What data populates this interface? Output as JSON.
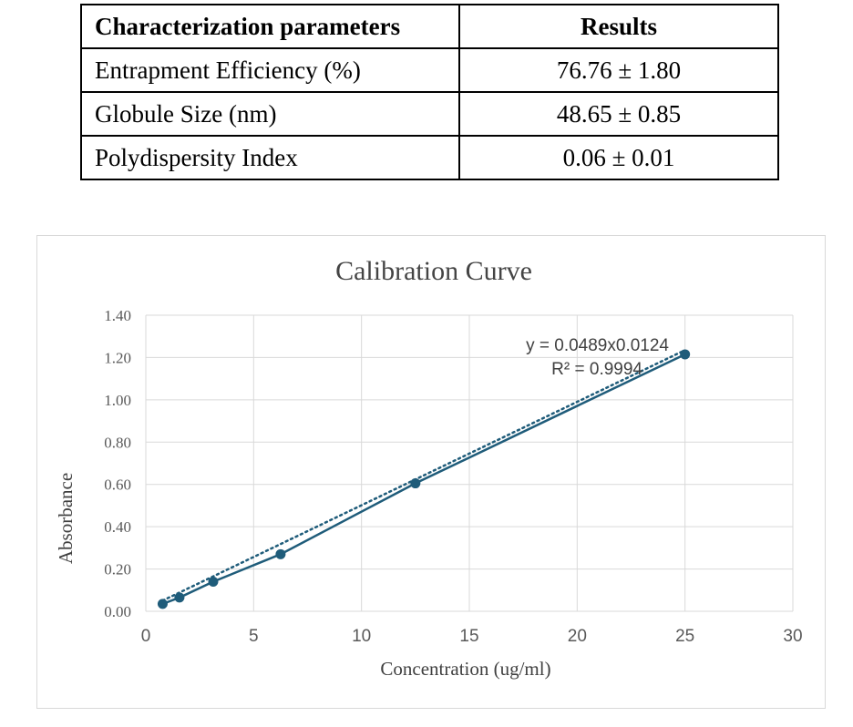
{
  "table": {
    "headers": [
      "Characterization parameters",
      "Results"
    ],
    "rows": [
      {
        "parameter": "Entrapment Efficiency (%)",
        "result": "76.76 ± 1.80"
      },
      {
        "parameter": "Globule Size (nm)",
        "result": "48.65 ± 0.85"
      },
      {
        "parameter": "Polydispersity Index",
        "result": "0.06 ± 0.01"
      }
    ]
  },
  "chart_data": {
    "type": "scatter",
    "title": "Calibration Curve",
    "xlabel": "Concentration (ug/ml)",
    "ylabel": "Absorbance",
    "xlim": [
      0,
      30
    ],
    "ylim": [
      0,
      1.4
    ],
    "x_ticks": [
      "0",
      "5",
      "10",
      "15",
      "20",
      "25",
      "30"
    ],
    "y_ticks": [
      "0.00",
      "0.20",
      "0.40",
      "0.60",
      "0.80",
      "1.00",
      "1.20",
      "1.40"
    ],
    "grid": true,
    "series": [
      {
        "x": [
          0.78,
          1.56,
          3.125,
          6.25,
          12.5,
          25
        ],
        "y": [
          0.035,
          0.065,
          0.14,
          0.27,
          0.605,
          1.215
        ],
        "color": "#1f5c7a",
        "connected": true
      }
    ],
    "trendline": {
      "type": "linear",
      "slope": 0.0489,
      "intercept": 0.0124,
      "style": "dotted",
      "color": "#1f5c7a"
    },
    "annotations": [
      "y = 0.0489x0.0124",
      "R² = 0.9994"
    ]
  }
}
